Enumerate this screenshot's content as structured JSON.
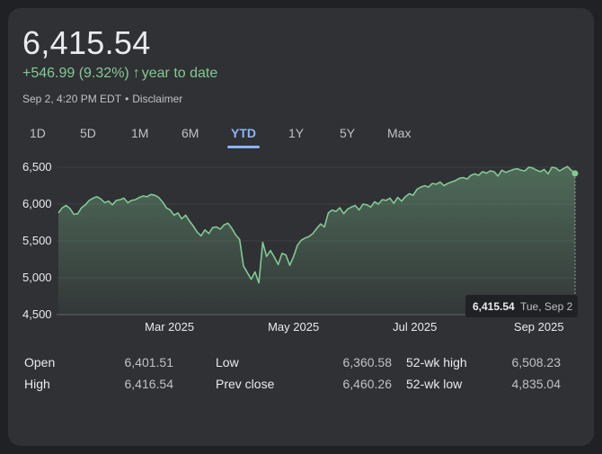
{
  "quote": {
    "price": "6,415.54",
    "change": "+546.99 (9.32%)",
    "change_arrow": "↑",
    "change_period": "year to date",
    "timestamp": "Sep 2, 4:20 PM EDT",
    "separator": "•",
    "disclaimer": "Disclaimer",
    "positive_color": "#81c995"
  },
  "tabs": [
    {
      "label": "1D"
    },
    {
      "label": "5D"
    },
    {
      "label": "1M"
    },
    {
      "label": "6M"
    },
    {
      "label": "YTD",
      "active": true
    },
    {
      "label": "1Y"
    },
    {
      "label": "5Y"
    },
    {
      "label": "Max"
    }
  ],
  "chart_data": {
    "type": "area",
    "y_ticks": [
      "6,500",
      "6,000",
      "5,500",
      "5,000",
      "4,500"
    ],
    "y_tick_values": [
      6500,
      6000,
      5500,
      5000,
      4500
    ],
    "x_ticks": [
      "Mar 2025",
      "May 2025",
      "Jul 2025",
      "Sep 2025"
    ],
    "x_tick_positions": [
      0.215,
      0.455,
      0.69,
      0.93
    ],
    "ylim": [
      4500,
      6500
    ],
    "line_color": "#81c995",
    "grid": true,
    "values": [
      5880,
      5950,
      5980,
      5940,
      5860,
      5870,
      5950,
      5990,
      6050,
      6080,
      6100,
      6070,
      6020,
      6040,
      5990,
      6050,
      6060,
      6080,
      6020,
      6050,
      6060,
      6090,
      6110,
      6100,
      6130,
      6120,
      6090,
      6030,
      5950,
      5920,
      5850,
      5880,
      5800,
      5850,
      5770,
      5700,
      5620,
      5570,
      5650,
      5600,
      5680,
      5690,
      5660,
      5720,
      5740,
      5670,
      5580,
      5520,
      5160,
      5070,
      4980,
      5080,
      4930,
      5480,
      5290,
      5370,
      5280,
      5180,
      5330,
      5310,
      5170,
      5290,
      5440,
      5510,
      5540,
      5560,
      5600,
      5670,
      5730,
      5690,
      5880,
      5920,
      5900,
      5950,
      5870,
      5930,
      5960,
      5980,
      5920,
      6000,
      5990,
      5960,
      6030,
      6000,
      6060,
      6050,
      6080,
      6010,
      6090,
      6040,
      6100,
      6140,
      6120,
      6200,
      6230,
      6250,
      6230,
      6280,
      6270,
      6300,
      6250,
      6280,
      6300,
      6320,
      6350,
      6360,
      6340,
      6390,
      6410,
      6390,
      6440,
      6420,
      6450,
      6440,
      6380,
      6460,
      6430,
      6450,
      6470,
      6480,
      6460,
      6450,
      6500,
      6490,
      6460,
      6440,
      6470,
      6410,
      6500,
      6490,
      6450,
      6480,
      6510,
      6460,
      6415.54
    ],
    "tooltip": {
      "value": "6,415.54",
      "date": "Tue, Sep 2"
    }
  },
  "stats": {
    "col1": [
      {
        "label": "Open",
        "value": "6,401.51"
      },
      {
        "label": "High",
        "value": "6,416.54"
      }
    ],
    "col2": [
      {
        "label": "Low",
        "value": "6,360.58"
      },
      {
        "label": "Prev close",
        "value": "6,460.26"
      }
    ],
    "col3": [
      {
        "label": "52-wk high",
        "value": "6,508.23"
      },
      {
        "label": "52-wk low",
        "value": "4,835.04"
      }
    ]
  }
}
